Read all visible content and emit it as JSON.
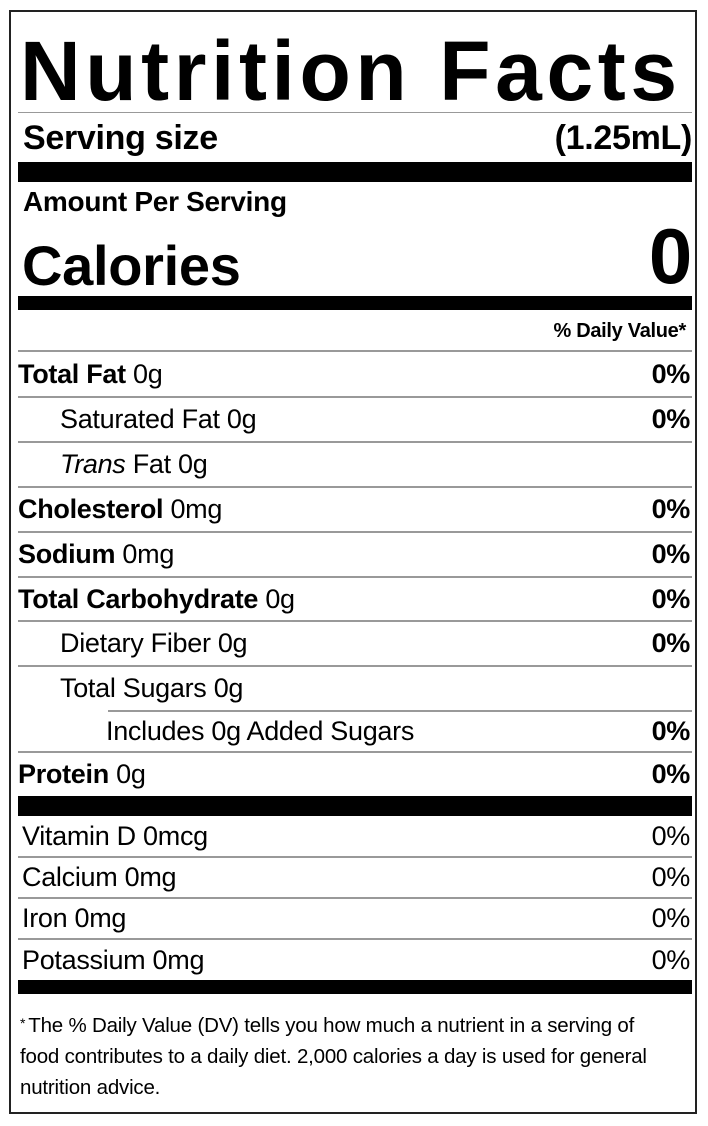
{
  "title": "Nutrition Facts",
  "serving": {
    "label": "Serving size",
    "value": "(1.25mL)"
  },
  "amount_per_serving": "Amount Per Serving",
  "calories": {
    "label": "Calories",
    "value": "0"
  },
  "daily_value_header": "% Daily Value*",
  "nutrients": [
    {
      "name": "Total Fat",
      "amount": "0g",
      "dv": "0%"
    },
    {
      "name": "Saturated Fat",
      "amount": "0g",
      "dv": "0%"
    },
    {
      "name": "Trans",
      "name_suffix": "Fat",
      "amount": "0g",
      "dv": ""
    },
    {
      "name": "Cholesterol",
      "amount": "0mg",
      "dv": "0%"
    },
    {
      "name": "Sodium",
      "amount": "0mg",
      "dv": "0%"
    },
    {
      "name": "Total Carbohydrate",
      "amount": "0g",
      "dv": "0%"
    },
    {
      "name": "Dietary Fiber",
      "amount": "0g",
      "dv": "0%"
    },
    {
      "name": "Total Sugars",
      "amount": "0g",
      "dv": ""
    },
    {
      "name": "Includes 0g Added Sugars",
      "amount": "",
      "dv": "0%"
    },
    {
      "name": "Protein",
      "amount": "0g",
      "dv": "0%"
    }
  ],
  "vitamins": [
    {
      "name": "Vitamin D 0mcg",
      "dv": "0%"
    },
    {
      "name": "Calcium 0mg",
      "dv": "0%"
    },
    {
      "name": "Iron 0mg",
      "dv": "0%"
    },
    {
      "name": "Potassium 0mg",
      "dv": "0%"
    }
  ],
  "footnote": {
    "marker": "*",
    "text": "The % Daily Value (DV) tells you how much a nutrient in a serving of food contributes to a daily diet. 2,000 calories a day is used for general nutrition advice."
  }
}
